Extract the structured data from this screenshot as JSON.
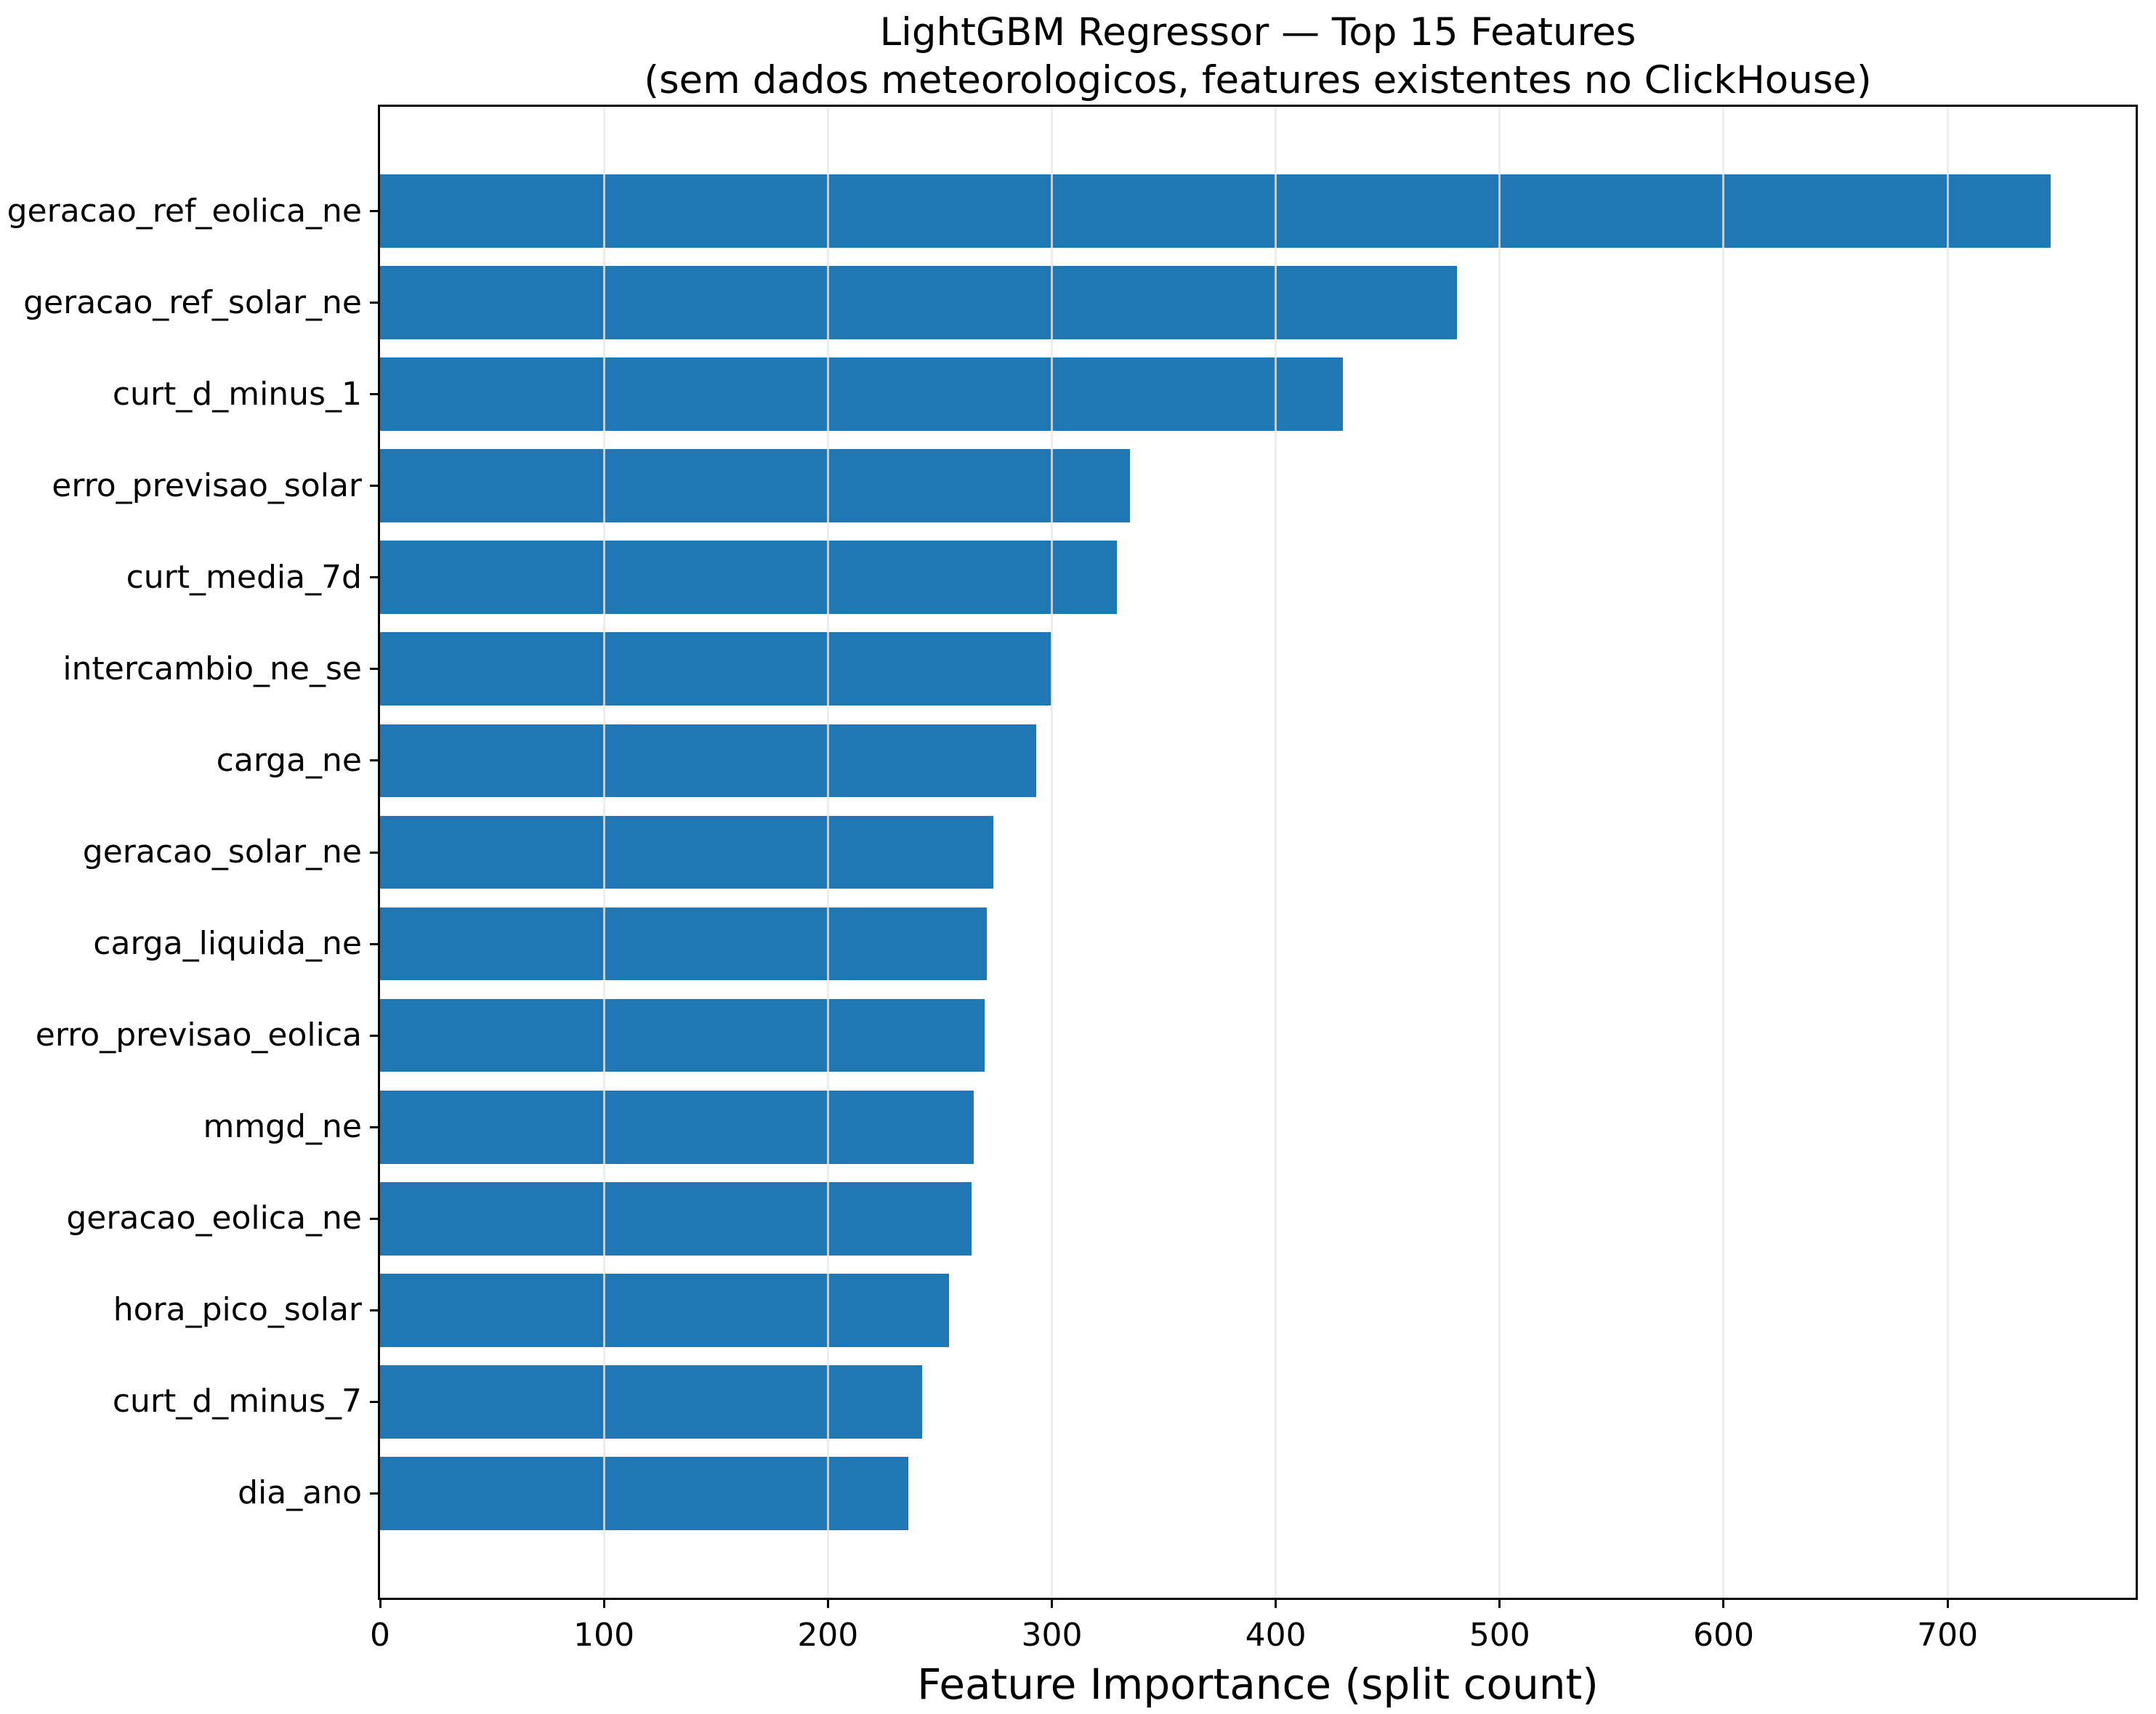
{
  "chart_data": {
    "type": "bar",
    "orientation": "horizontal",
    "title": "LightGBM Regressor — Top 15 Features",
    "subtitle": "(sem dados meteorologicos, features existentes no ClickHouse)",
    "xlabel": "Feature Importance (split count)",
    "ylabel": "",
    "categories": [
      "geracao_ref_eolica_ne",
      "geracao_ref_solar_ne",
      "curt_d_minus_1",
      "erro_previsao_solar",
      "curt_media_7d",
      "intercambio_ne_se",
      "carga_ne",
      "geracao_solar_ne",
      "carga_liquida_ne",
      "erro_previsao_eolica",
      "mmgd_ne",
      "geracao_eolica_ne",
      "hora_pico_solar",
      "curt_d_minus_7",
      "dia_ano"
    ],
    "values": [
      746,
      481,
      430,
      335,
      329,
      300,
      293,
      274,
      271,
      270,
      265,
      264,
      254,
      242,
      236
    ],
    "xlim": [
      0,
      784
    ],
    "xticks": [
      0,
      100,
      200,
      300,
      400,
      500,
      600,
      700
    ],
    "grid": true,
    "grid_axis": "x",
    "legend": false,
    "bar_color": "#1f77b4",
    "grid_color": "#e8e8e8",
    "text_color": "#000000",
    "spine_color": "#000000",
    "background_color": "#ffffff"
  }
}
